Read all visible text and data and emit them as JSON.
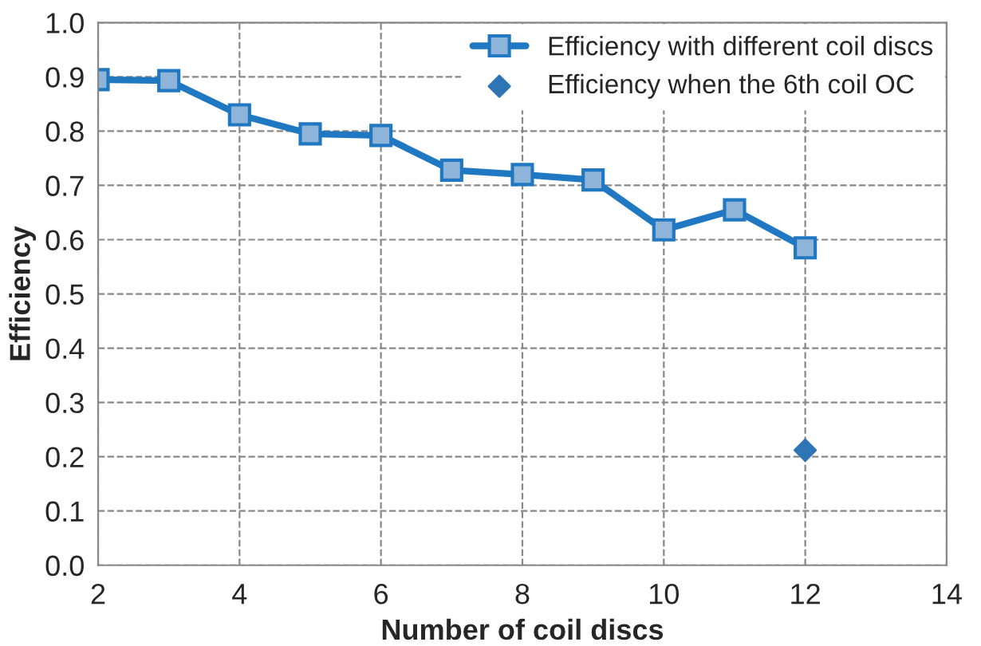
{
  "chart_data": {
    "type": "line",
    "xlabel": "Number of coil discs",
    "ylabel": "Efficiency",
    "xlim": [
      2,
      14
    ],
    "xticks": [
      2,
      4,
      6,
      8,
      10,
      12,
      14
    ],
    "ylim": [
      0,
      1
    ],
    "yticks": [
      {
        "value": 0,
        "label": "0.0"
      },
      0.1,
      0.2,
      0.3,
      0.4,
      0.5,
      0.6,
      0.7,
      0.8,
      0.9,
      {
        "value": 1,
        "label": "1.0"
      }
    ],
    "grid": true,
    "legend": "top right",
    "series": [
      {
        "name": "Efficiency with different coil discs",
        "marker": "square",
        "line_style": "solid",
        "color": "#1f78c1",
        "x": [
          2,
          3,
          4,
          5,
          6,
          7,
          8,
          9,
          10,
          11,
          12
        ],
        "values": [
          0.895,
          0.893,
          0.83,
          0.795,
          0.792,
          0.728,
          0.72,
          0.71,
          0.618,
          0.655,
          0.585
        ]
      },
      {
        "name": "Efficiency when the 6th coil OC",
        "type": "scatter",
        "marker": "diamond",
        "color": "#2e75b6",
        "x": [
          12
        ],
        "values": [
          0.212
        ]
      }
    ]
  }
}
